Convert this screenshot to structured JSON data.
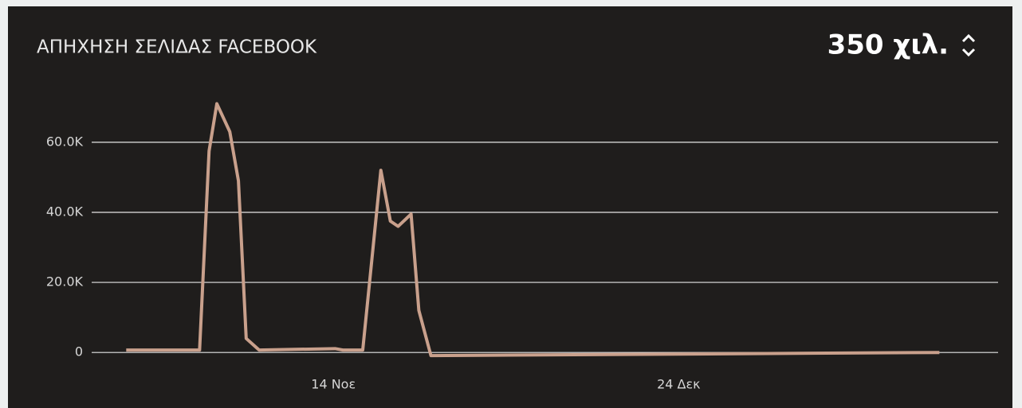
{
  "chart_data": {
    "type": "line",
    "title": "ΑΠΗΧΗΣΗ ΣΕΛΙΔΑΣ FACEBOOK",
    "summary": "350 χιλ.",
    "x": [
      0,
      8.5,
      9.6,
      10.5,
      12,
      13,
      13.9,
      15.4,
      24.2,
      25.1,
      27.4,
      29.5,
      30.6,
      31.5,
      33,
      33.9,
      35.3,
      40.8,
      94.2
    ],
    "series": [
      {
        "name": "Απήχηση",
        "color": "#c9a08c",
        "values": [
          700,
          700,
          57500,
          71000,
          63000,
          49000,
          4000,
          700,
          1100,
          700,
          700,
          52000,
          37500,
          36000,
          39500,
          12000,
          -900,
          -800,
          0
        ]
      }
    ],
    "xlim": [
      -4,
      101
    ],
    "xticks": [
      {
        "value": 24,
        "label": "14 Νοε"
      },
      {
        "value": 64,
        "label": "24 Δεκ"
      }
    ],
    "ylim": [
      -2000,
      72000
    ],
    "yticks": [
      0,
      {
        "value": 20000,
        "label": "20.0K"
      },
      {
        "value": 40000,
        "label": "40.0K"
      },
      {
        "value": 60000,
        "label": "60.0K"
      }
    ],
    "grid": true
  }
}
